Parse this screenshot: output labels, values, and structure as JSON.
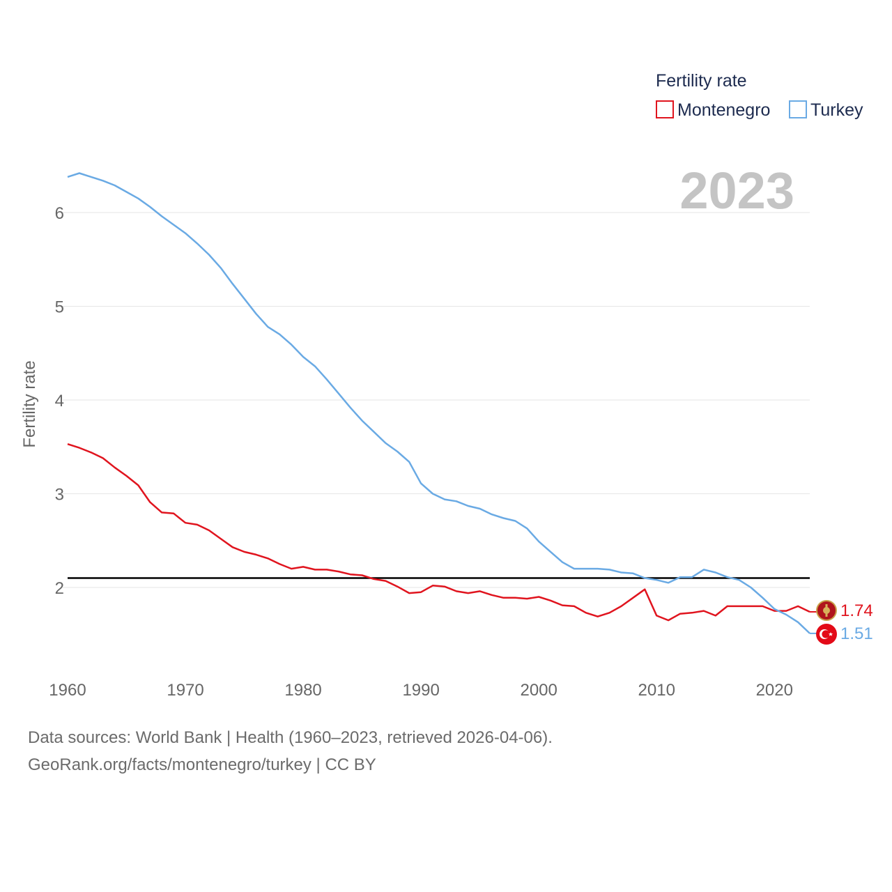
{
  "chart_data": {
    "type": "line",
    "ylabel": "Fertility rate",
    "xlabel": "",
    "xlim": [
      1960,
      2023
    ],
    "ylim": [
      1.25,
      6.5
    ],
    "x_ticks": [
      1960,
      1970,
      1980,
      1990,
      2000,
      2010,
      2020
    ],
    "y_ticks": [
      2,
      3,
      4,
      5,
      6
    ],
    "reference_line": 2.1,
    "legend": {
      "title": "Fertility rate",
      "position": "top-right"
    },
    "year_label": "2023",
    "x": [
      1960,
      1961,
      1962,
      1963,
      1964,
      1965,
      1966,
      1967,
      1968,
      1969,
      1970,
      1971,
      1972,
      1973,
      1974,
      1975,
      1976,
      1977,
      1978,
      1979,
      1980,
      1981,
      1982,
      1983,
      1984,
      1985,
      1986,
      1987,
      1988,
      1989,
      1990,
      1991,
      1992,
      1993,
      1994,
      1995,
      1996,
      1997,
      1998,
      1999,
      2000,
      2001,
      2002,
      2003,
      2004,
      2005,
      2006,
      2007,
      2008,
      2009,
      2010,
      2011,
      2012,
      2013,
      2014,
      2015,
      2016,
      2017,
      2018,
      2019,
      2020,
      2021,
      2022,
      2023
    ],
    "series": [
      {
        "name": "Montenegro",
        "color": "#e0141e",
        "end_label": "1.74",
        "flag": "montenegro-flag-icon",
        "values": [
          3.53,
          3.49,
          3.44,
          3.38,
          3.28,
          3.19,
          3.09,
          2.91,
          2.8,
          2.79,
          2.69,
          2.67,
          2.61,
          2.52,
          2.43,
          2.38,
          2.35,
          2.31,
          2.25,
          2.2,
          2.22,
          2.19,
          2.19,
          2.17,
          2.14,
          2.13,
          2.09,
          2.07,
          2.01,
          1.94,
          1.95,
          2.02,
          2.01,
          1.96,
          1.94,
          1.96,
          1.92,
          1.89,
          1.89,
          1.88,
          1.9,
          1.86,
          1.81,
          1.8,
          1.73,
          1.69,
          1.73,
          1.8,
          1.89,
          1.98,
          1.7,
          1.65,
          1.72,
          1.73,
          1.75,
          1.7,
          1.8,
          1.8,
          1.8,
          1.8,
          1.75,
          1.75,
          1.8,
          1.74
        ]
      },
      {
        "name": "Turkey",
        "color": "#6aaae4",
        "end_label": "1.51",
        "flag": "turkey-flag-icon",
        "values": [
          6.38,
          6.42,
          6.38,
          6.34,
          6.29,
          6.22,
          6.15,
          6.06,
          5.96,
          5.87,
          5.78,
          5.67,
          5.55,
          5.41,
          5.24,
          5.08,
          4.92,
          4.78,
          4.7,
          4.59,
          4.46,
          4.36,
          4.22,
          4.07,
          3.92,
          3.78,
          3.66,
          3.54,
          3.45,
          3.34,
          3.11,
          3.0,
          2.94,
          2.92,
          2.87,
          2.84,
          2.78,
          2.74,
          2.71,
          2.63,
          2.49,
          2.38,
          2.27,
          2.2,
          2.2,
          2.2,
          2.19,
          2.16,
          2.15,
          2.1,
          2.08,
          2.05,
          2.11,
          2.11,
          2.19,
          2.16,
          2.11,
          2.08,
          2.0,
          1.89,
          1.77,
          1.71,
          1.63,
          1.51
        ]
      }
    ],
    "footer": {
      "line1": "Data sources: World Bank | Health (1960–2023, retrieved 2026-04-06).",
      "line2": "GeoRank.org/facts/montenegro/turkey | CC BY"
    }
  }
}
